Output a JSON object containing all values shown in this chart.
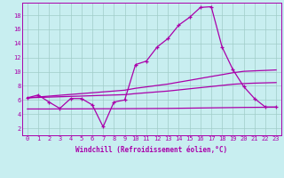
{
  "xlabel": "Windchill (Refroidissement éolien,°C)",
  "background_color": "#c8eef0",
  "line_color": "#aa00aa",
  "grid_color": "#a0ccc8",
  "x_ticks": [
    0,
    1,
    2,
    3,
    4,
    5,
    6,
    7,
    8,
    9,
    10,
    11,
    12,
    13,
    14,
    15,
    16,
    17,
    18,
    19,
    20,
    21,
    22,
    23
  ],
  "y_ticks": [
    2,
    4,
    6,
    8,
    10,
    12,
    14,
    16,
    18
  ],
  "ylim": [
    1.0,
    19.8
  ],
  "xlim": [
    -0.5,
    23.5
  ],
  "series": {
    "curve": [
      6.3,
      6.7,
      5.7,
      4.8,
      6.2,
      6.2,
      5.3,
      2.2,
      5.7,
      6.0,
      11.0,
      11.5,
      13.5,
      14.7,
      16.6,
      17.7,
      19.1,
      19.2,
      13.5,
      10.3,
      7.9,
      6.2,
      5.0,
      5.0
    ],
    "line1": [
      6.3,
      6.42,
      6.54,
      6.66,
      6.78,
      6.9,
      7.02,
      7.14,
      7.26,
      7.38,
      7.65,
      7.85,
      8.05,
      8.25,
      8.52,
      8.78,
      9.05,
      9.32,
      9.58,
      9.85,
      10.05,
      10.12,
      10.18,
      10.25
    ],
    "line2": [
      6.3,
      6.35,
      6.4,
      6.45,
      6.5,
      6.55,
      6.6,
      6.65,
      6.7,
      6.75,
      6.9,
      7.02,
      7.14,
      7.26,
      7.42,
      7.58,
      7.74,
      7.9,
      8.06,
      8.22,
      8.32,
      8.38,
      8.42,
      8.46
    ],
    "line3": [
      4.72,
      4.72,
      4.72,
      4.73,
      4.73,
      4.74,
      4.74,
      4.75,
      4.75,
      4.76,
      4.77,
      4.78,
      4.79,
      4.8,
      4.82,
      4.84,
      4.86,
      4.88,
      4.9,
      4.92,
      4.94,
      4.95,
      4.96,
      4.97
    ]
  },
  "xlabel_fontsize": 5.5,
  "tick_fontsize": 5.0,
  "linewidth": 0.9,
  "markersize": 3.5
}
